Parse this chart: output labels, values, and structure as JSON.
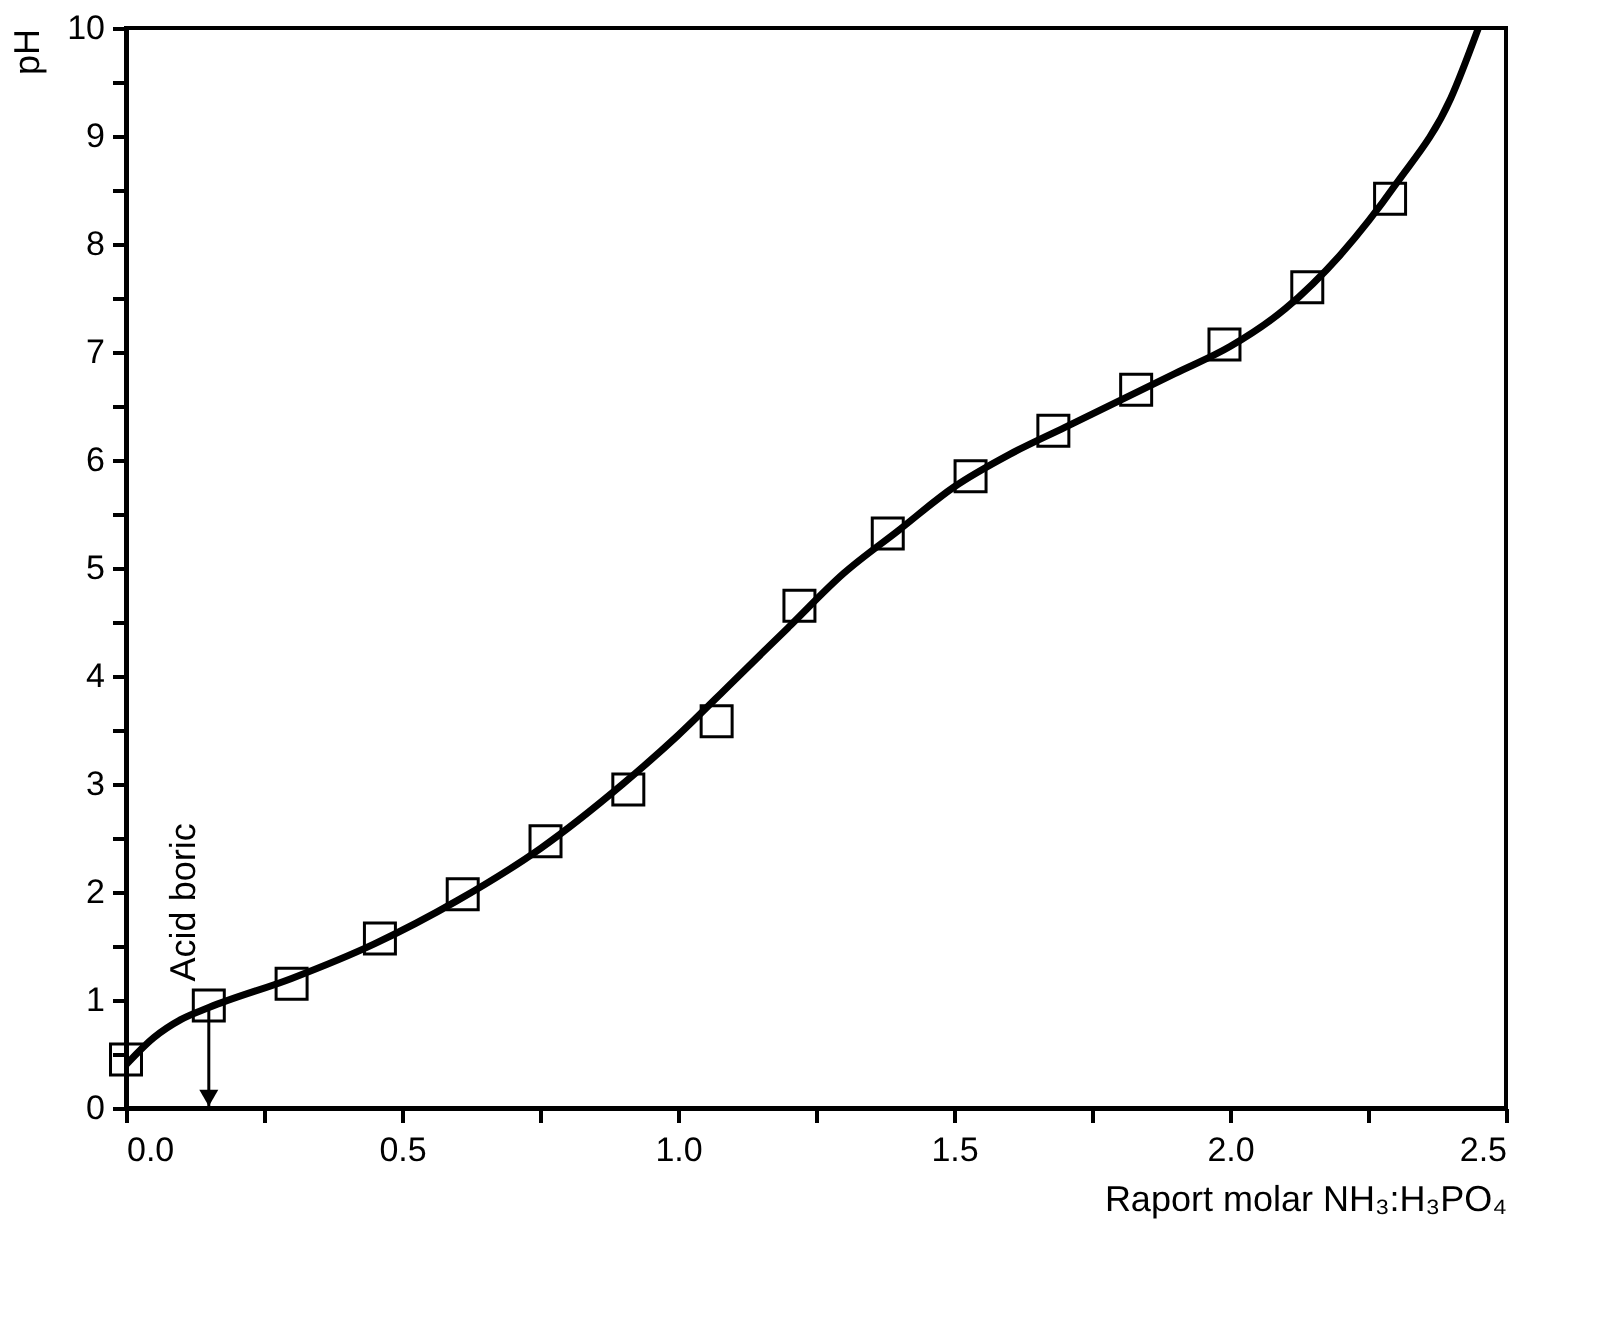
{
  "chart_data": {
    "type": "scatter",
    "xlabel": "Raport molar NH₃:H₃PO₄",
    "ylabel": "pH",
    "xlim": [
      0,
      2.5
    ],
    "ylim": [
      0,
      10
    ],
    "xticks": [
      {
        "value": 0,
        "label": "0.0"
      },
      {
        "value": 0.25,
        "label": null
      },
      {
        "value": 0.5,
        "label": "0.5"
      },
      {
        "value": 0.75,
        "label": null
      },
      {
        "value": 1,
        "label": "1.0"
      },
      {
        "value": 1.25,
        "label": null
      },
      {
        "value": 1.5,
        "label": "1.5"
      },
      {
        "value": 1.75,
        "label": null
      },
      {
        "value": 2,
        "label": "2.0"
      },
      {
        "value": 2.25,
        "label": null
      },
      {
        "value": 2.5,
        "label": "2.5"
      }
    ],
    "yticks": [
      0,
      {
        "value": 0.5,
        "label": null
      },
      1,
      {
        "value": 1.5,
        "label": null
      },
      2,
      {
        "value": 2.5,
        "label": null
      },
      3,
      {
        "value": 3.5,
        "label": null
      },
      4,
      {
        "value": 4.5,
        "label": null
      },
      5,
      {
        "value": 5.5,
        "label": null
      },
      6,
      {
        "value": 6.5,
        "label": null
      },
      7,
      {
        "value": 7.5,
        "label": null
      },
      8,
      {
        "value": 8.5,
        "label": null
      },
      9,
      {
        "value": 9.5,
        "label": null
      },
      10
    ],
    "series": [
      {
        "marker": "square",
        "color": "#000000",
        "x": [
          0.0,
          0.15,
          0.3,
          0.46,
          0.61,
          0.76,
          0.91,
          1.07,
          1.22,
          1.38,
          1.53,
          1.68,
          1.83,
          1.99,
          2.14,
          2.29
        ],
        "values": [
          0.45,
          0.95,
          1.15,
          1.57,
          1.98,
          2.47,
          2.95,
          3.58,
          4.65,
          5.32,
          5.85,
          6.27,
          6.65,
          7.07,
          7.6,
          8.42
        ]
      },
      {
        "type": "line",
        "line_style": "solid",
        "marker": "none",
        "color": "#000000",
        "x": [
          0,
          0.05,
          0.1,
          0.15,
          0.3,
          0.45,
          0.6,
          0.75,
          0.9,
          1.0,
          1.1,
          1.2,
          1.3,
          1.4,
          1.5,
          1.6,
          1.7,
          1.8,
          1.9,
          2.0,
          2.1,
          2.2,
          2.3,
          2.4,
          2.45
        ],
        "values": [
          0.4,
          0.65,
          0.82,
          0.93,
          1.2,
          1.52,
          1.92,
          2.4,
          3.0,
          3.45,
          3.95,
          4.45,
          4.95,
          5.35,
          5.75,
          6.05,
          6.3,
          6.55,
          6.8,
          7.05,
          7.4,
          7.9,
          8.55,
          9.35,
          10.0
        ]
      }
    ],
    "annotations": [
      {
        "text": "Acid boric",
        "x": 0.15,
        "y": 0.95
      }
    ]
  }
}
